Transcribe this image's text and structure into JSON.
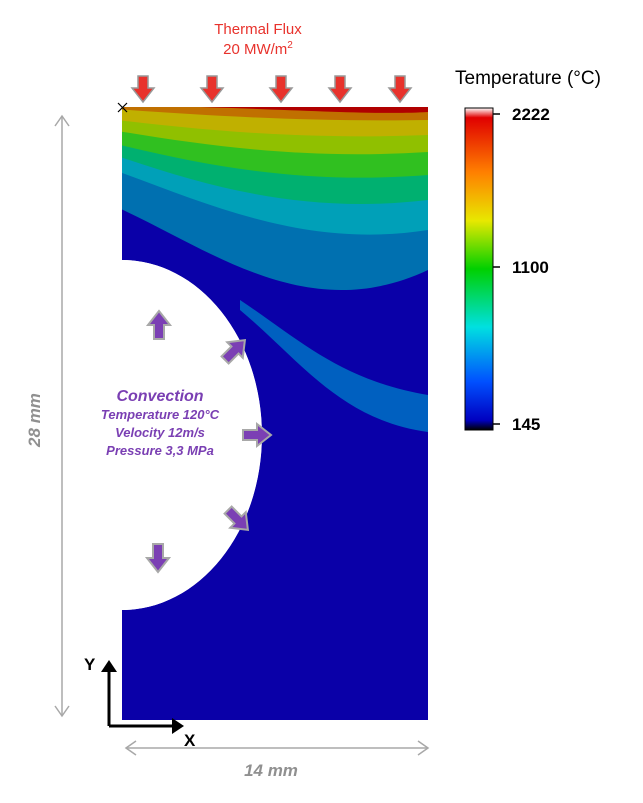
{
  "flux": {
    "title": "Thermal Flux",
    "value": "20 MW/m",
    "sup": "2"
  },
  "colorbar": {
    "title": "Temperature (°C)",
    "ticks": [
      "2222",
      "1100",
      "145"
    ]
  },
  "convection": {
    "title": "Convection",
    "lines": [
      "Temperature 120°C",
      "Velocity 12m/s",
      "Pressure 3,3 MPa"
    ]
  },
  "dimensions": {
    "height": "28 mm",
    "width": "14 mm"
  },
  "axes": {
    "x": "X",
    "y": "Y"
  },
  "colors": {
    "flux_arrow": "#e8322c",
    "convection_arrow": "#7b3fb4",
    "cold": "#0a00a8",
    "hot": "#b00000"
  }
}
